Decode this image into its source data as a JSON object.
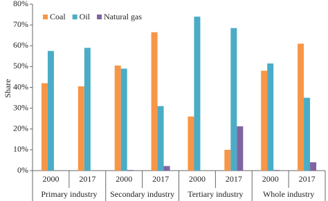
{
  "chart_data": {
    "type": "bar",
    "y_label": "Share",
    "categories": [
      "2000",
      "2017",
      "2000",
      "2017",
      "2000",
      "2017",
      "2000",
      "2017"
    ],
    "category_groups": [
      "Primary industry",
      "Secondary industry",
      "Tertiary industry",
      "Whole industry"
    ],
    "series": [
      {
        "name": "Coal",
        "color": "#f79646",
        "values": [
          42,
          40.5,
          50.5,
          66.5,
          26,
          10,
          48,
          61
        ]
      },
      {
        "name": "Oil",
        "color": "#4bacc6",
        "values": [
          57.5,
          59,
          49,
          31,
          74,
          68.5,
          51.5,
          35
        ]
      },
      {
        "name": "Natural gas",
        "color": "#8064a2",
        "values": [
          0,
          0,
          0.3,
          2.2,
          0,
          21.3,
          0.3,
          4
        ]
      }
    ],
    "ylim": [
      0,
      80
    ],
    "yticks": [
      {
        "value": 0,
        "label": "0%"
      },
      {
        "value": 10,
        "label": "10%"
      },
      {
        "value": 20,
        "label": "20%"
      },
      {
        "value": 30,
        "label": "30%"
      },
      {
        "value": 40,
        "label": "40%"
      },
      {
        "value": 50,
        "label": "50%"
      },
      {
        "value": 60,
        "label": "60%"
      },
      {
        "value": 70,
        "label": "70%"
      },
      {
        "value": 80,
        "label": "80%"
      }
    ],
    "legend": "top-left"
  }
}
